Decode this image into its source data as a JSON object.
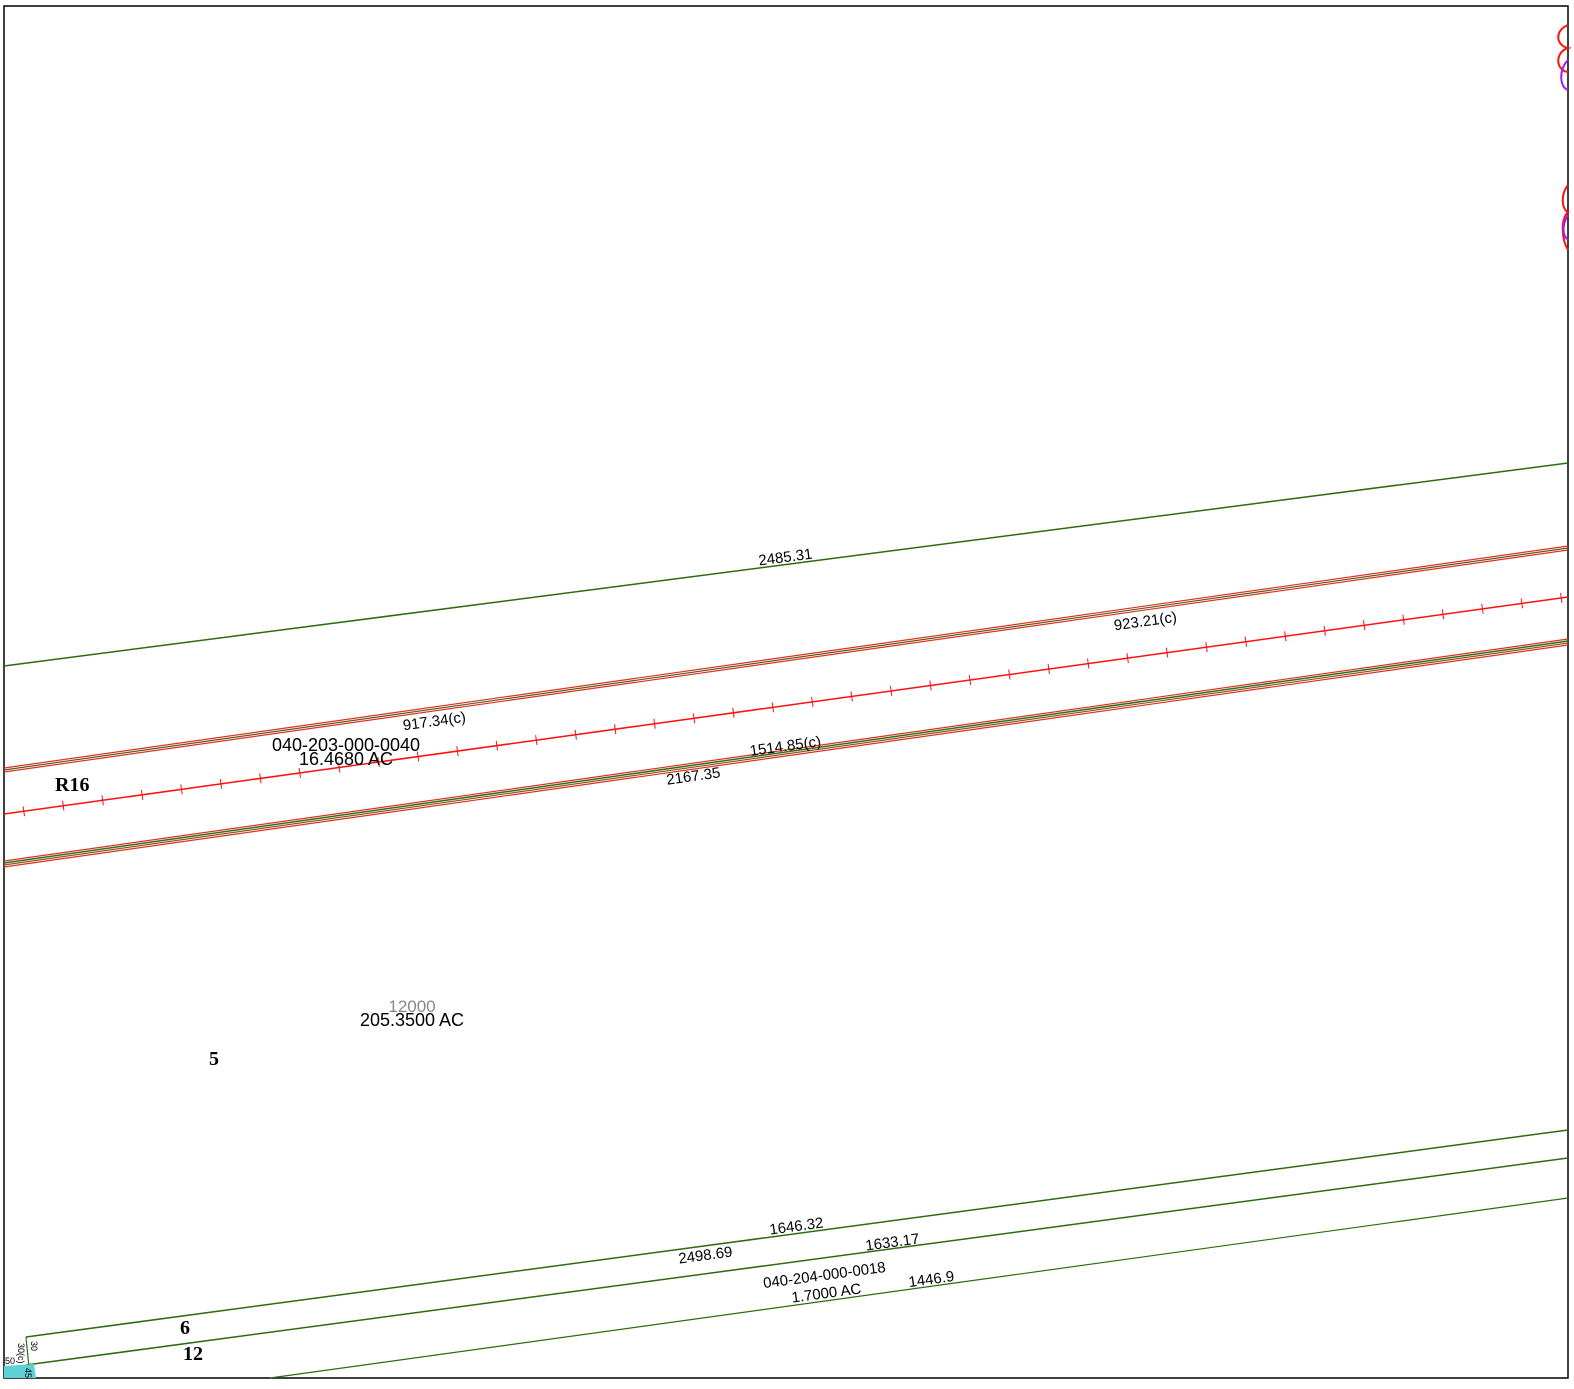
{
  "map": {
    "labels": {
      "line_top": "2485.31",
      "rail_upper_right": "923.21(c)",
      "rail_upper_left": "917.34(c)",
      "parcel_id": "040-203-000-0040",
      "parcel_area": "16.4680 AC",
      "range": "R16",
      "rail_lower_right": "1514.85(c)",
      "rail_lower_left": "2167.35",
      "big_parcel_id": "12000",
      "big_parcel_area": "205.3500 AC",
      "section_5": "5",
      "line_bottom_right": "1646.32",
      "line_bottom_left": "2498.69",
      "line_mid": "1633.17",
      "small_parcel_id": "040-204-000-0018",
      "small_parcel_area": "1.7000 AC",
      "line_low": "1446.9",
      "section_6": "6",
      "section_12": "12",
      "corner_a": "30",
      "corner_b": "30(c)",
      "corner_c": "50",
      "corner_d": "45"
    }
  }
}
